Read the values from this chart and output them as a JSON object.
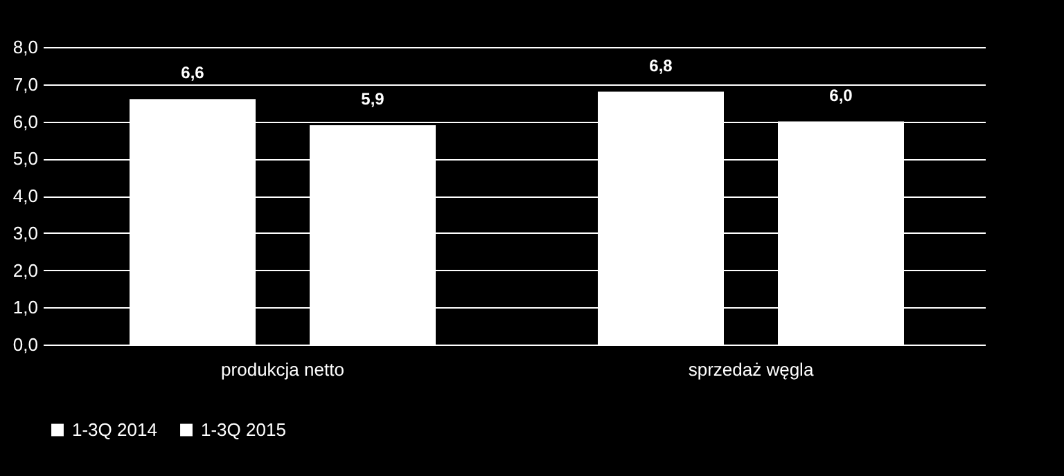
{
  "chart_data": {
    "type": "bar",
    "categories": [
      "produkcja netto",
      "sprzedaż węgla"
    ],
    "series": [
      {
        "name": "1-3Q 2014",
        "color": "#ffffff",
        "values": [
          6.6,
          6.8
        ],
        "value_labels": [
          "6,6",
          "6,8"
        ]
      },
      {
        "name": "1-3Q 2015",
        "color": "#ffffff",
        "values": [
          5.9,
          6.0
        ],
        "value_labels": [
          "5,9",
          "6,0"
        ]
      }
    ],
    "ylim": [
      0,
      8
    ],
    "yticks": [
      {
        "value": 0,
        "label": "0,0"
      },
      {
        "value": 1,
        "label": "1,0"
      },
      {
        "value": 2,
        "label": "2,0"
      },
      {
        "value": 3,
        "label": "3,0"
      },
      {
        "value": 4,
        "label": "4,0"
      },
      {
        "value": 5,
        "label": "5,0"
      },
      {
        "value": 6,
        "label": "6,0"
      },
      {
        "value": 7,
        "label": "7,0"
      },
      {
        "value": 8,
        "label": "8,0"
      }
    ],
    "grid": "y",
    "legend": "bottom"
  }
}
